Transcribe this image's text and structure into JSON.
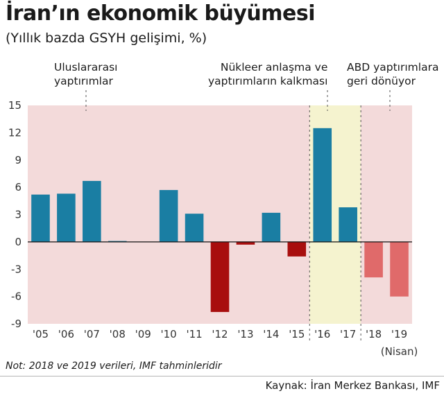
{
  "title": "İran’ın ekonomik büyümesi",
  "subtitle": "(Yıllık bazda GSYH gelişimi, %)",
  "annotations": {
    "sanctions": [
      "Uluslararası",
      "yaptırımlar"
    ],
    "nuclear_deal": [
      "Nükleer anlaşma ve",
      "yaptırımların kalkması"
    ],
    "us_sanctions": [
      "ABD yaptırımlara",
      "geri dönüyor"
    ]
  },
  "note": "Not: 2018 ve 2019 verileri, IMF tahminleridir",
  "source": "Kaynak: İran Merkez Bankası, IMF",
  "colors": {
    "sanctions_band": "#f3dada",
    "deal_band": "#f5f3cf",
    "bar_positive": "#1a7ea3",
    "bar_negative": "#a80e0e",
    "bar_estimate": "#e06a6a",
    "zero_line": "#111111",
    "tick_text": "#333333"
  },
  "chart_data": {
    "type": "bar",
    "title": "İran’ın ekonomik büyümesi",
    "subtitle": "(Yıllık bazda GSYH gelişimi, %)",
    "categories": [
      "'05",
      "'06",
      "'07",
      "'08",
      "'09",
      "'10",
      "'11",
      "'12",
      "'13",
      "'14",
      "'15",
      "'16",
      "'17",
      "'18",
      "'19"
    ],
    "category_note": "(Nisan)",
    "values": [
      5.2,
      5.3,
      6.7,
      0.1,
      0.0,
      5.7,
      3.1,
      -7.7,
      -0.3,
      3.2,
      -1.6,
      12.5,
      3.8,
      -3.9,
      -6.0
    ],
    "estimate_flags": [
      false,
      false,
      false,
      false,
      false,
      false,
      false,
      false,
      false,
      false,
      false,
      false,
      false,
      true,
      true
    ],
    "yticks": [
      15,
      12,
      9,
      6,
      3,
      0,
      -3,
      -6,
      -9
    ],
    "ylim": [
      -9,
      15
    ],
    "bands": [
      {
        "type": "sanctions",
        "from_index": 0,
        "to_index": 10
      },
      {
        "type": "deal",
        "from_index": 11,
        "to_index": 12
      },
      {
        "type": "sanctions",
        "from_index": 13,
        "to_index": 14
      }
    ],
    "grid": false,
    "legend": "none"
  }
}
